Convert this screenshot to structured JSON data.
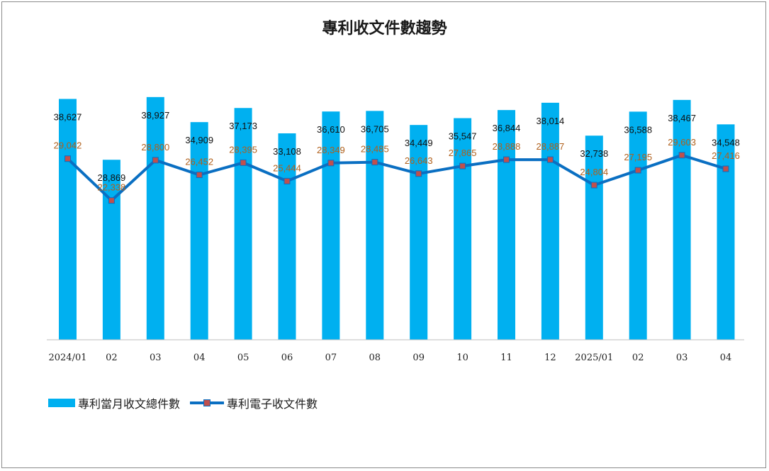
{
  "chart_data": {
    "type": "bar",
    "title": "專利收文件數趨勢",
    "categories": [
      "2024/01",
      "02",
      "03",
      "04",
      "05",
      "06",
      "07",
      "08",
      "09",
      "10",
      "11",
      "12",
      "2025/01",
      "02",
      "03",
      "04"
    ],
    "series": [
      {
        "name": "專利當月收文總件數",
        "type": "bar",
        "color": "#00b0f0",
        "values": [
          38627,
          28869,
          38927,
          34909,
          37173,
          33108,
          36610,
          36705,
          34449,
          35547,
          36844,
          38014,
          32738,
          36588,
          38467,
          34548
        ],
        "labels": [
          "38,627",
          "28,869",
          "38,927",
          "34,909",
          "37,173",
          "33,108",
          "36,610",
          "36,705",
          "34,449",
          "35,547",
          "36,844",
          "38,014",
          "32,738",
          "36,588",
          "38,467",
          "34,548"
        ]
      },
      {
        "name": "專利電子收文件數",
        "type": "line",
        "color": "#0a6fc2",
        "marker_color": "#c0504d",
        "label_color": "#b0601c",
        "values": [
          29042,
          22338,
          28800,
          26452,
          28395,
          25444,
          28349,
          28485,
          26643,
          27865,
          28888,
          28887,
          24804,
          27195,
          29603,
          27416
        ],
        "labels": [
          "29,042",
          "22,338",
          "28,800",
          "26,452",
          "28,395",
          "25,444",
          "28,349",
          "28,485",
          "26,643",
          "27,865",
          "28,888",
          "28,887",
          "24,804",
          "27,195",
          "29,603",
          "27,416"
        ]
      }
    ],
    "legend_position": "bottom-left",
    "grid": false
  }
}
